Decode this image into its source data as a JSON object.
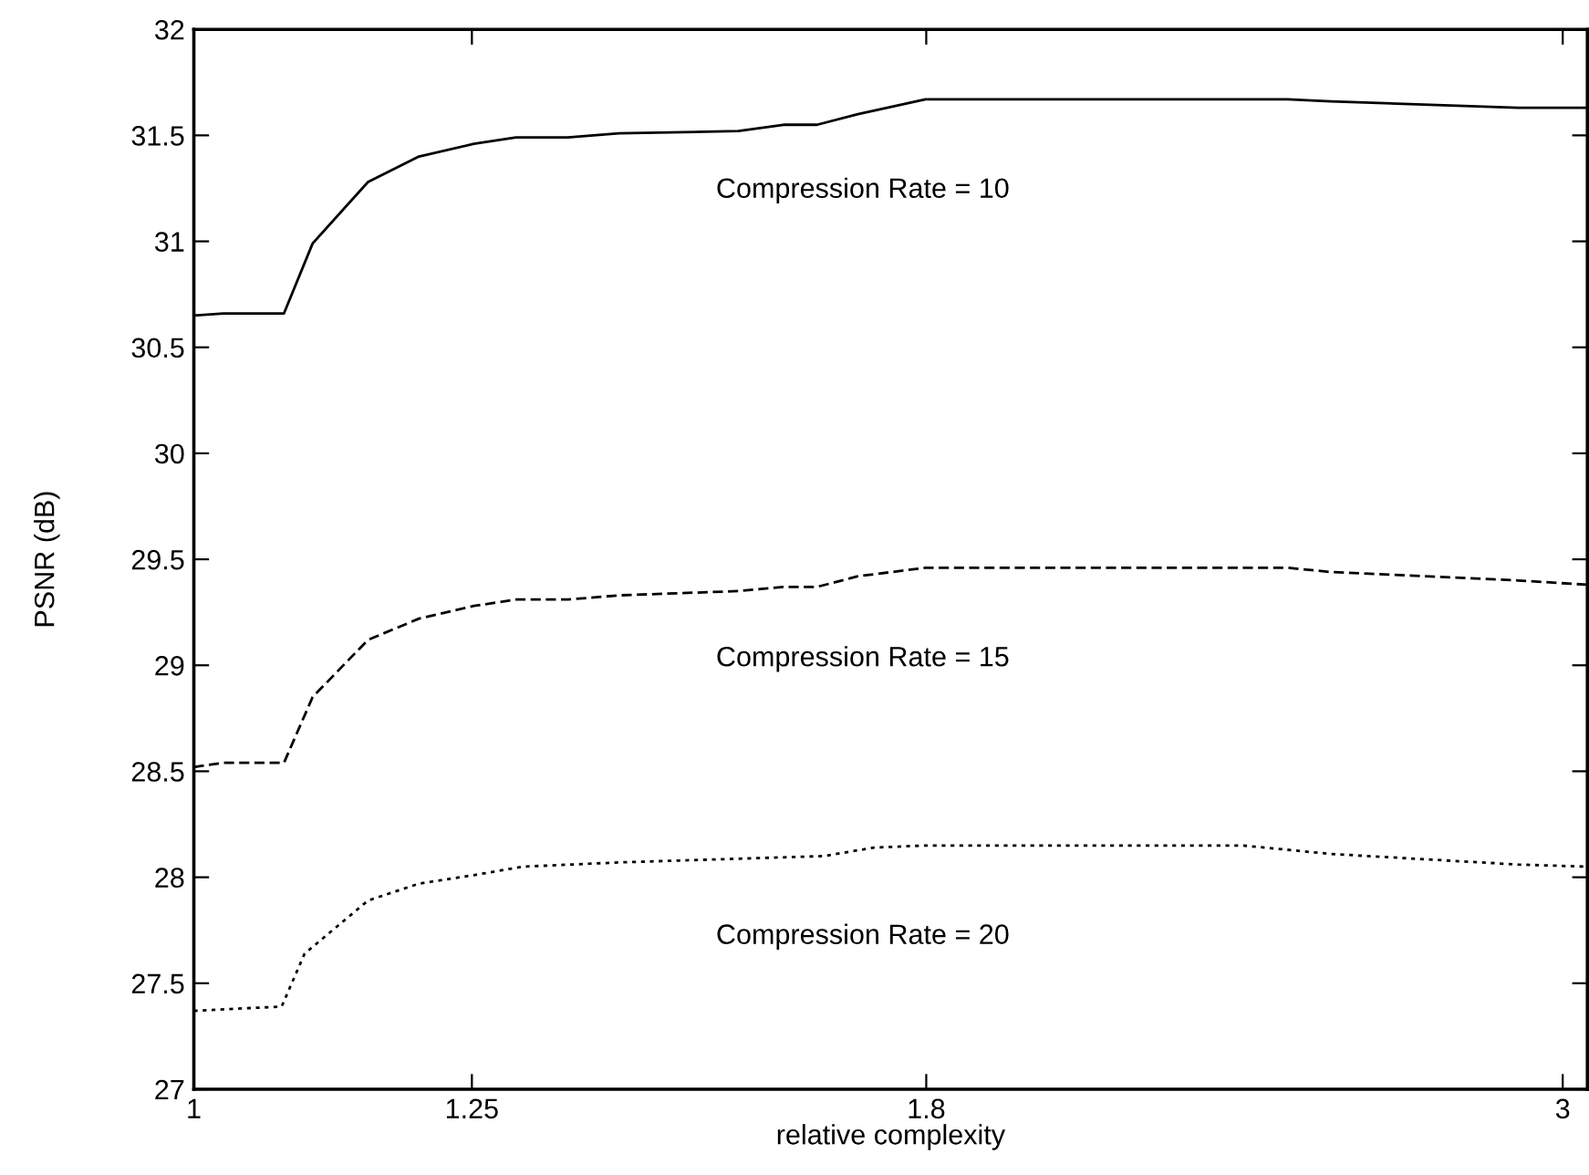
{
  "chart_data": {
    "type": "line",
    "xlabel": "relative complexity",
    "ylabel": "PSNR (dB)",
    "log": "x",
    "xlim": [
      1,
      3.06
    ],
    "xticks": [
      1,
      1.25,
      1.8,
      3
    ],
    "ylim": [
      27,
      32
    ],
    "yticks": [
      27,
      27.5,
      28,
      28.5,
      29,
      29.5,
      30,
      30.5,
      31,
      31.5,
      32
    ],
    "grid": false,
    "legend": false,
    "x": [
      1.0,
      1.024,
      1.075,
      1.1,
      1.15,
      1.198,
      1.252,
      1.295,
      1.35,
      1.407,
      1.548,
      1.605,
      1.649,
      1.704,
      1.799,
      2.406,
      2.49,
      2.894,
      3.06
    ],
    "series": [
      {
        "name": "Compression Rate = 10",
        "color": "#000000",
        "line_style": "solid",
        "values": [
          30.65,
          30.66,
          30.66,
          30.99,
          31.28,
          31.4,
          31.46,
          31.49,
          31.49,
          31.51,
          31.52,
          31.55,
          31.55,
          31.6,
          31.67,
          31.67,
          31.66,
          31.63,
          31.63
        ]
      },
      {
        "name": "Compression Rate = 15",
        "color": "#000000",
        "line_style": "dashed",
        "values": [
          28.52,
          28.54,
          28.54,
          28.85,
          29.12,
          29.22,
          29.28,
          29.31,
          29.31,
          29.33,
          29.35,
          29.37,
          29.37,
          29.42,
          29.46,
          29.46,
          29.44,
          29.4,
          29.38
        ]
      },
      {
        "name": "Compression Rate = 20",
        "color": "#000000",
        "line_style": "dotted",
        "x": [
          1.0,
          1.073,
          1.093,
          1.15,
          1.198,
          1.252,
          1.302,
          1.407,
          1.658,
          1.726,
          1.799,
          2.32,
          2.49,
          2.894,
          3.06
        ],
        "values": [
          27.37,
          27.39,
          27.64,
          27.89,
          27.97,
          28.01,
          28.05,
          28.07,
          28.1,
          28.14,
          28.15,
          28.15,
          28.11,
          28.06,
          28.05
        ]
      }
    ]
  }
}
